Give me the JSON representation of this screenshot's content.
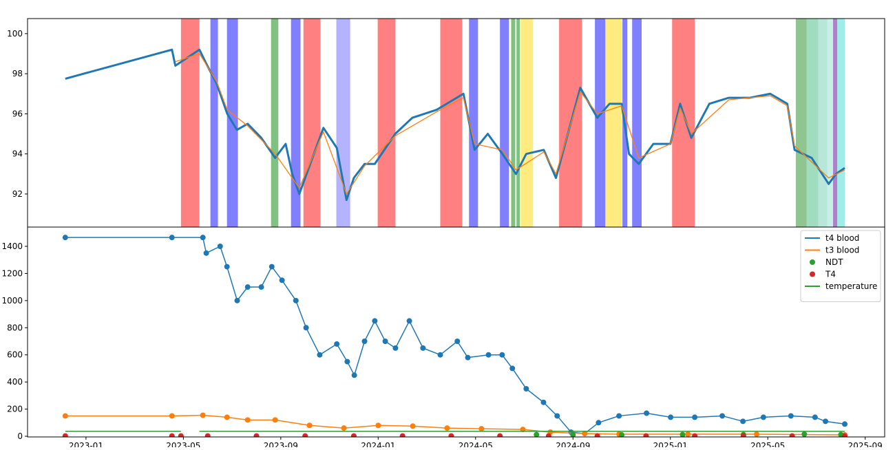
{
  "chart_data": [
    {
      "type": "line",
      "xlim": [
        -2.4,
        32.8
      ],
      "ylim": [
        90.35,
        100.75
      ],
      "yticks": [
        92,
        94,
        96,
        98,
        100
      ],
      "bands": [
        {
          "x": [
            3.9,
            4.66
          ],
          "color": "#ff8080"
        },
        {
          "x": [
            5.11,
            5.42
          ],
          "color": "#8080ff"
        },
        {
          "x": [
            5.79,
            6.24
          ],
          "color": "#8080ff"
        },
        {
          "x": [
            7.6,
            7.9
          ],
          "color": "#80c080"
        },
        {
          "x": [
            8.42,
            8.81
          ],
          "color": "#8080ff"
        },
        {
          "x": [
            8.93,
            9.63
          ],
          "color": "#ff8080"
        },
        {
          "x": [
            10.28,
            10.85
          ],
          "color": "#b3b3ff"
        },
        {
          "x": [
            11.98,
            12.71
          ],
          "color": "#ff8080"
        },
        {
          "x": [
            14.55,
            15.45
          ],
          "color": "#ff8080"
        },
        {
          "x": [
            15.73,
            16.1
          ],
          "color": "#8080ff"
        },
        {
          "x": [
            17.0,
            17.37
          ],
          "color": "#8080ff"
        },
        {
          "x": [
            17.46,
            17.63
          ],
          "color": "#80c080"
        },
        {
          "x": [
            17.68,
            17.82
          ],
          "color": "#80c080"
        },
        {
          "x": [
            17.85,
            18.36
          ],
          "color": "#ffeb80"
        },
        {
          "x": [
            19.43,
            20.37
          ],
          "color": "#ff8080"
        },
        {
          "x": [
            20.9,
            21.33
          ],
          "color": "#8080ff"
        },
        {
          "x": [
            21.33,
            22.0
          ],
          "color": "#ffeb80"
        },
        {
          "x": [
            22.03,
            22.23
          ],
          "color": "#8080ff"
        },
        {
          "x": [
            22.43,
            22.82
          ],
          "color": "#8080ff"
        },
        {
          "x": [
            24.07,
            25.0
          ],
          "color": "#ff8080"
        },
        {
          "x": [
            29.15,
            29.6
          ],
          "color": "#90c490"
        },
        {
          "x": [
            29.6,
            30.08
          ],
          "color": "#a0dcc0"
        },
        {
          "x": [
            30.08,
            30.45
          ],
          "color": "#b8e6d8"
        },
        {
          "x": [
            30.45,
            30.68
          ],
          "color": "#c8f0e8"
        },
        {
          "x": [
            30.68,
            30.85
          ],
          "color": "#b080c8"
        },
        {
          "x": [
            30.85,
            31.16
          ],
          "color": "#a0ece8"
        }
      ],
      "series": [
        {
          "style": "line",
          "color": "#1f77b4",
          "width": 3,
          "x": [
            -0.85,
            3.53,
            3.67,
            4.66,
            4.94,
            5.37,
            5.8,
            6.2,
            6.64,
            7.2,
            7.77,
            8.2,
            8.47,
            8.76,
            9.75,
            10.3,
            10.7,
            11.0,
            11.44,
            11.86,
            12.7,
            13.4,
            14.4,
            15.5,
            15.96,
            16.5,
            17.1,
            17.66,
            18.08,
            18.8,
            19.3,
            20.3,
            21.0,
            21.5,
            22.0,
            22.3,
            22.7,
            23.3,
            24.0,
            24.4,
            24.86,
            25.6,
            26.4,
            27.26,
            28.1,
            28.8,
            29.1,
            29.8,
            30.5,
            30.8,
            31.16
          ],
          "values": [
            97.75,
            99.2,
            98.4,
            99.2,
            98.5,
            97.5,
            96,
            95.2,
            95.5,
            94.8,
            93.8,
            94.5,
            93,
            92,
            95.3,
            94.3,
            91.7,
            92.8,
            93.5,
            93.5,
            95,
            95.8,
            96.2,
            97,
            94.2,
            95,
            94,
            93,
            94,
            94.2,
            92.8,
            97.3,
            95.8,
            96.5,
            96.5,
            94,
            93.5,
            94.5,
            94.5,
            96.5,
            94.8,
            96.5,
            96.8,
            96.8,
            97,
            96.5,
            94.2,
            93.8,
            92.5,
            93,
            93.3
          ]
        },
        {
          "style": "line",
          "color": "#ff7f0e",
          "width": 1.3,
          "x": [
            3.67,
            4.66,
            5.37,
            5.8,
            6.64,
            7.77,
            8.76,
            9.75,
            10.7,
            11.44,
            12.7,
            14.4,
            15.5,
            15.96,
            17.1,
            17.66,
            18.8,
            19.3,
            20.3,
            21.0,
            22.0,
            22.7,
            24.0,
            24.4,
            24.86,
            26.4,
            28.1,
            28.8,
            29.1,
            30.5,
            31.16
          ],
          "values": [
            98.6,
            99.0,
            97.6,
            96.2,
            95.4,
            94.0,
            92.3,
            95.1,
            92.0,
            93.4,
            94.9,
            96.1,
            96.8,
            94.5,
            94.2,
            93.2,
            94.1,
            93.0,
            97.1,
            96.0,
            96.4,
            93.8,
            94.5,
            96.3,
            95.0,
            96.7,
            96.9,
            96.4,
            94.4,
            92.8,
            93.2
          ]
        }
      ]
    },
    {
      "type": "line",
      "xlim": [
        -2.4,
        32.8
      ],
      "ylim": [
        -5,
        1542
      ],
      "yticks": [
        0,
        200,
        400,
        600,
        800,
        1000,
        1200,
        1400
      ],
      "xticks": [
        {
          "value": 0,
          "label": "2023-01"
        },
        {
          "value": 4,
          "label": "2023-05"
        },
        {
          "value": 8,
          "label": "2023-09"
        },
        {
          "value": 12,
          "label": "2024-01"
        },
        {
          "value": 16,
          "label": "2024-05"
        },
        {
          "value": 20,
          "label": "2024-09"
        },
        {
          "value": 24,
          "label": "2025-01"
        },
        {
          "value": 28,
          "label": "2025-05"
        },
        {
          "value": 32,
          "label": "2025-09"
        }
      ],
      "legend": "upper right",
      "series": [
        {
          "name": "t4 blood",
          "style": "line-markers",
          "color": "#1f77b4",
          "x": [
            -0.85,
            3.53,
            4.8,
            4.94,
            5.51,
            5.79,
            6.21,
            6.64,
            7.2,
            7.63,
            8.05,
            8.62,
            9.04,
            9.6,
            10.3,
            10.73,
            11.02,
            11.44,
            11.86,
            12.29,
            12.71,
            13.28,
            13.84,
            14.55,
            15.25,
            15.68,
            16.53,
            17.09,
            17.51,
            18.08,
            18.79,
            19.35,
            19.92,
            20.48,
            21.05,
            21.89,
            23.02,
            24.01,
            25.0,
            26.13,
            26.98,
            27.82,
            28.95,
            29.94,
            30.37,
            31.16
          ],
          "values": [
            1465,
            1465,
            1465,
            1350,
            1400,
            1250,
            1000,
            1100,
            1100,
            1250,
            1150,
            1000,
            800,
            600,
            680,
            550,
            450,
            700,
            850,
            700,
            650,
            850,
            650,
            600,
            700,
            580,
            600,
            600,
            500,
            350,
            250,
            150,
            30,
            20,
            100,
            150,
            170,
            140,
            140,
            150,
            110,
            140,
            150,
            140,
            110,
            90
          ]
        },
        {
          "name": "t3 blood",
          "style": "line-markers",
          "color": "#ff7f0e",
          "x": [
            -0.85,
            3.53,
            4.8,
            5.79,
            6.64,
            7.77,
            9.18,
            10.59,
            12.0,
            13.42,
            14.83,
            16.24,
            17.94,
            19.07,
            20.48,
            21.89,
            24.72,
            27.54,
            31.16
          ],
          "values": [
            150,
            150,
            155,
            140,
            120,
            120,
            80,
            60,
            80,
            75,
            60,
            55,
            50,
            30,
            20,
            15,
            15,
            15,
            10
          ]
        },
        {
          "name": "NDT",
          "style": "markers",
          "color": "#2ca02c",
          "x": [
            18.5,
            20.0,
            22.0,
            24.5,
            27.0,
            29.5,
            31.0
          ],
          "values": [
            12,
            10,
            10,
            12,
            12,
            15,
            12
          ]
        },
        {
          "name": "T4",
          "style": "markers",
          "color": "#d62728",
          "x": [
            -0.85,
            3.53,
            3.9,
            5.0,
            7.0,
            9.0,
            11.0,
            13.0,
            15.0,
            17.0,
            19.0,
            21.0,
            23.0,
            25.0,
            27.0,
            29.0,
            31.16
          ],
          "values": [
            2,
            2,
            2,
            2,
            2,
            2,
            2,
            2,
            2,
            2,
            2,
            2,
            2,
            2,
            2,
            2,
            2
          ]
        },
        {
          "name": "temperature",
          "style": "line",
          "color": "#2ca02c",
          "x": [
            -0.85,
            3.9,
            3.95,
            4.66,
            31.16
          ],
          "values": [
            36,
            36,
            null,
            36,
            36
          ]
        }
      ]
    }
  ]
}
